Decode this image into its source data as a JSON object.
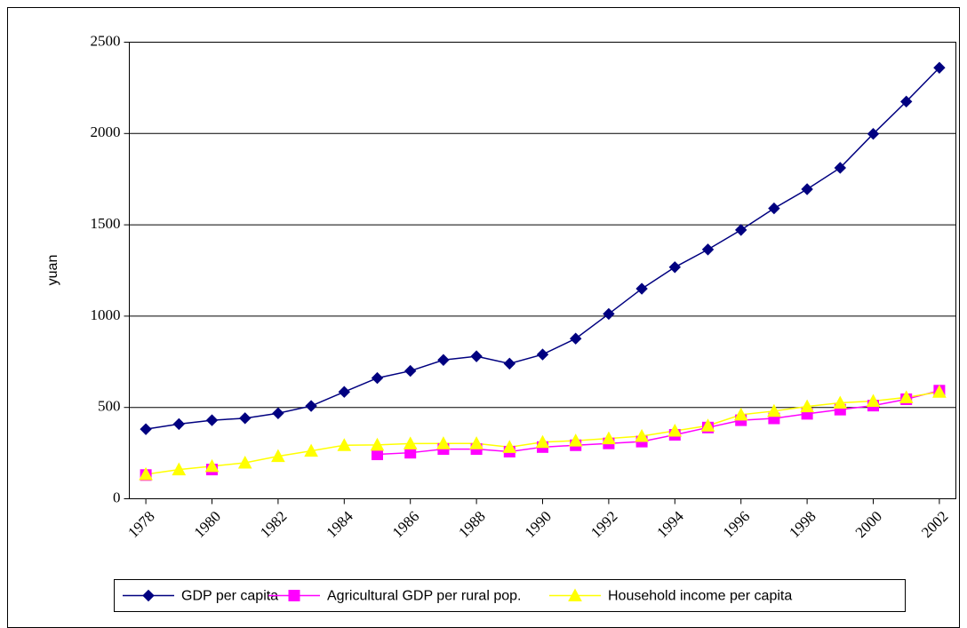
{
  "chart_data": {
    "type": "line",
    "y_label": "yuan",
    "x": [
      1978,
      1979,
      1980,
      1981,
      1982,
      1983,
      1984,
      1985,
      1986,
      1987,
      1988,
      1989,
      1990,
      1991,
      1992,
      1993,
      1994,
      1995,
      1996,
      1997,
      1998,
      1999,
      2000,
      2001,
      2002
    ],
    "xlim": [
      1977.5,
      2002.5
    ],
    "xticks": [
      1978,
      1980,
      1982,
      1984,
      1986,
      1988,
      1990,
      1992,
      1994,
      1996,
      1998,
      2000,
      2002
    ],
    "ylim": [
      0,
      2500
    ],
    "yticks": [
      0,
      500,
      1000,
      1500,
      2000,
      2500
    ],
    "grid": true,
    "legend": "bottom",
    "series": [
      {
        "name": "GDP per capita",
        "color": "#000080",
        "marker": "diamond",
        "values": [
          381,
          409,
          430,
          441,
          468,
          508,
          585,
          661,
          700,
          760,
          780,
          740,
          790,
          877,
          1012,
          1150,
          1268,
          1365,
          1472,
          1590,
          1695,
          1812,
          1998,
          2175,
          2360
        ]
      },
      {
        "name": "Agricultural GDP per rural pop.",
        "color": "#ff00ff",
        "marker": "square",
        "values": [
          130,
          null,
          160,
          null,
          null,
          null,
          null,
          243,
          252,
          272,
          272,
          258,
          283,
          293,
          303,
          313,
          350,
          390,
          430,
          440,
          465,
          488,
          510,
          545,
          592
        ]
      },
      {
        "name": "Household income per capita",
        "color": "#ffff00",
        "marker": "triangle",
        "values": [
          134,
          160,
          178,
          197,
          233,
          262,
          293,
          295,
          302,
          303,
          303,
          283,
          310,
          318,
          330,
          343,
          372,
          400,
          460,
          480,
          505,
          525,
          535,
          555,
          585
        ]
      }
    ]
  }
}
